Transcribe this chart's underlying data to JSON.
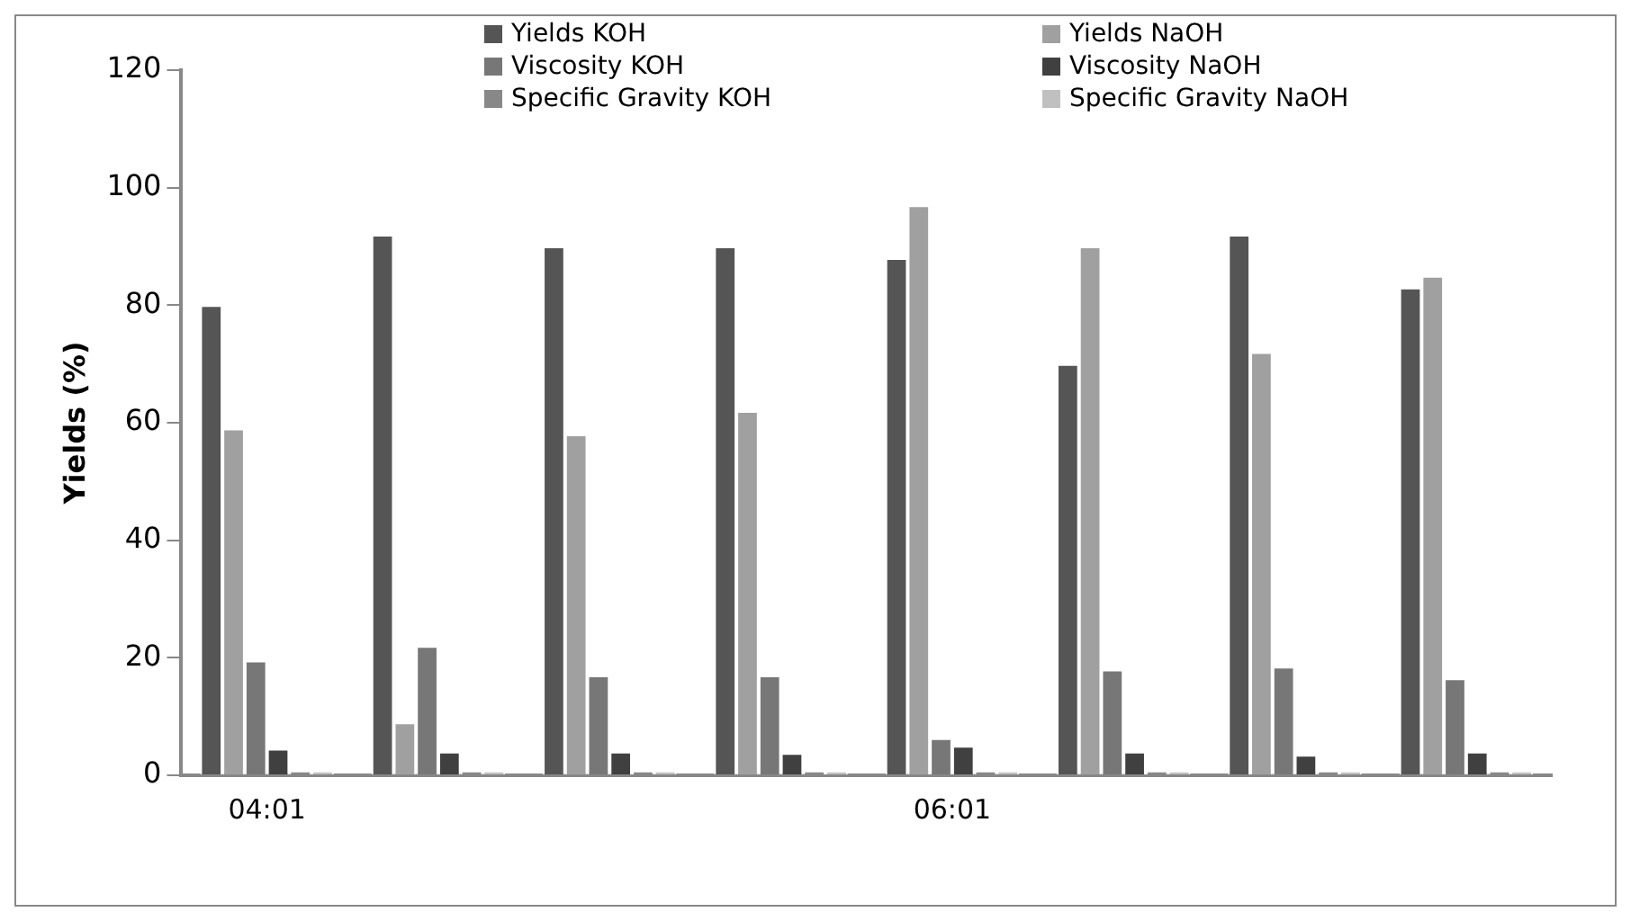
{
  "chart_data": {
    "type": "bar",
    "ylabel": "Yields (%)",
    "categories": [
      "04:01",
      null,
      null,
      null,
      "06:01",
      null,
      null,
      null
    ],
    "series": [
      {
        "name": "Yields KOH",
        "color": "#555555",
        "values": [
          80,
          92,
          90,
          90,
          88,
          70,
          92,
          83
        ]
      },
      {
        "name": "Yields NaOH",
        "color": "#a0a0a0",
        "values": [
          59,
          9,
          58,
          62,
          97,
          90,
          72,
          85
        ]
      },
      {
        "name": "Viscosity KOH",
        "color": "#777777",
        "values": [
          19.5,
          22,
          17,
          17,
          6.3,
          18,
          18.5,
          16.5
        ]
      },
      {
        "name": "Viscosity NaOH",
        "color": "#404040",
        "values": [
          4.5,
          4,
          4,
          3.8,
          5,
          4,
          3.5,
          4
        ]
      },
      {
        "name": "Specific Gravity KOH",
        "color": "#888888",
        "values": [
          0.8,
          0.8,
          0.8,
          0.8,
          0.8,
          0.8,
          0.8,
          0.8
        ]
      },
      {
        "name": "Specific Gravity NaOH",
        "color": "#c0c0c0",
        "values": [
          0.8,
          0.8,
          0.8,
          0.8,
          0.8,
          0.8,
          0.8,
          0.8
        ]
      }
    ],
    "ylim": [
      0,
      120
    ],
    "yticks": [
      0,
      20,
      40,
      60,
      80,
      100,
      120
    ],
    "grid": false,
    "legend": "top"
  }
}
